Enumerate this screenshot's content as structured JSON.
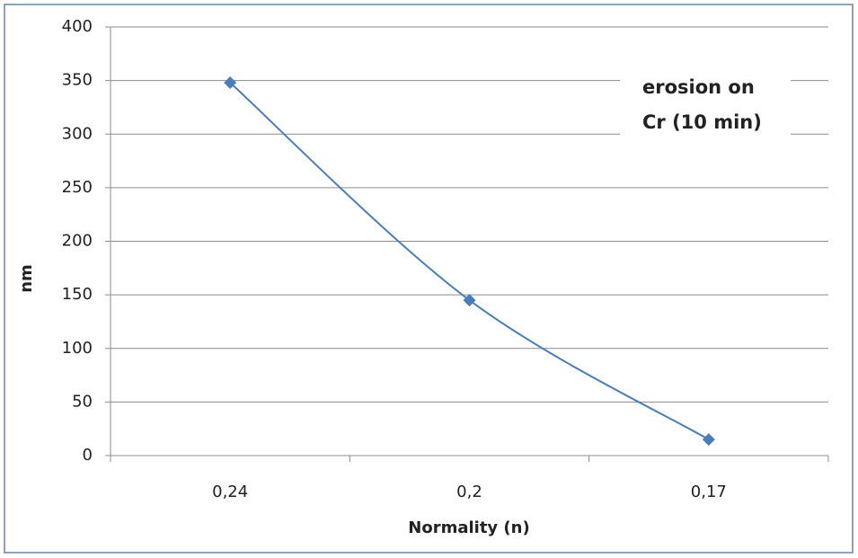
{
  "chart_data": {
    "type": "line",
    "categories": [
      "0,24",
      "0,2",
      "0,17"
    ],
    "values": [
      348,
      145,
      15
    ],
    "color": "#4a7ebb",
    "smooth": true,
    "marker": "diamond",
    "xlabel": "Normality (n)",
    "ylabel": "nm",
    "annotation": [
      "erosion on",
      "Cr (10 min)"
    ],
    "ylim": [
      0,
      400
    ],
    "yticks": [
      0,
      50,
      100,
      150,
      200,
      250,
      300,
      350,
      400
    ],
    "grid": true
  }
}
